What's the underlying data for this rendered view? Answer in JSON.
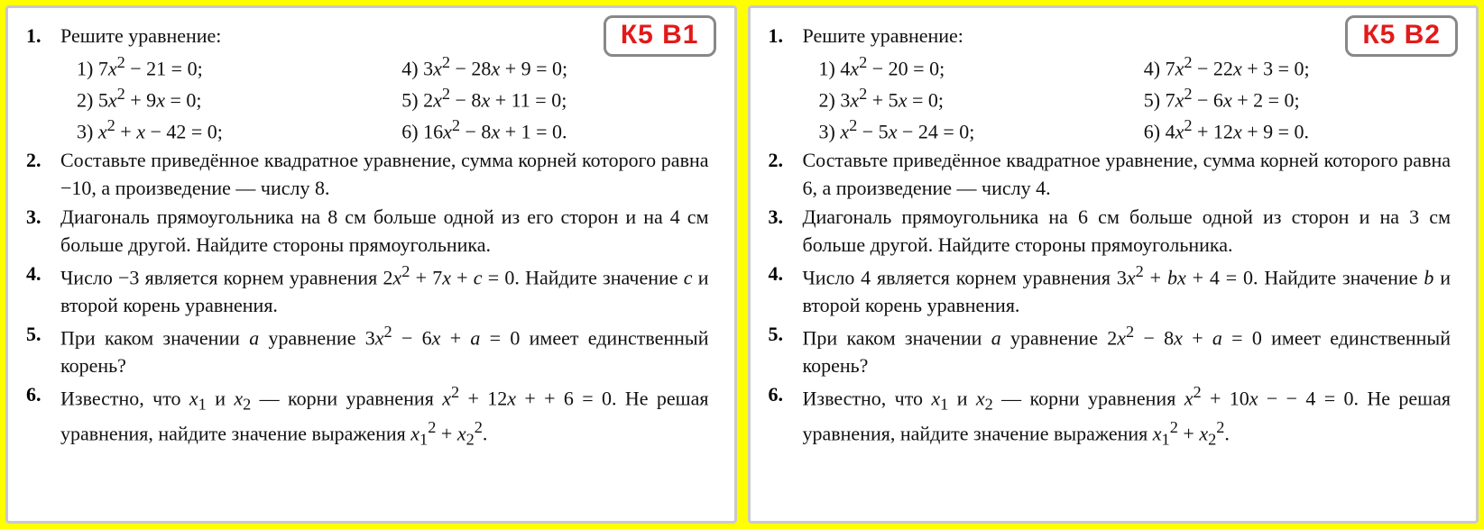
{
  "page_bg": "#ffff00",
  "card_bg": "#ffffff",
  "card_border": "#c9c9c9",
  "badge_text_color": "#e21a1a",
  "badge_border_color": "#888888",
  "variants": [
    {
      "badge": "К5 В1",
      "problems": [
        {
          "num": "1.",
          "intro": "Решите уравнение:",
          "sub": [
            "1) 7<i>x</i><sup>2</sup> − 21 = 0;",
            "4) 3<i>x</i><sup>2</sup> − 28<i>x</i> + 9 = 0;",
            "2) 5<i>x</i><sup>2</sup> + 9<i>x</i> = 0;",
            "5) 2<i>x</i><sup>2</sup> − 8<i>x</i> + 11 = 0;",
            "3) <i>x</i><sup>2</sup> + <i>x</i> − 42 = 0;",
            "6) 16<i>x</i><sup>2</sup> − 8<i>x</i> + 1 = 0."
          ]
        },
        {
          "num": "2.",
          "text": "Составьте приведённое квадратное уравнение, сумма корней которого равна −10, а произведение — числу 8."
        },
        {
          "num": "3.",
          "text": "Диагональ прямоугольника на 8 см больше одной из его сторон и на 4 см больше другой. Найдите стороны прямоугольника."
        },
        {
          "num": "4.",
          "text": "Число −3 является корнем уравнения 2<i>x</i><sup>2</sup> + 7<i>x</i> + <i>c</i> = 0. Найдите значение <i>c</i> и второй корень уравнения."
        },
        {
          "num": "5.",
          "text": "При каком значении <i>a</i> уравнение 3<i>x</i><sup>2</sup> − 6<i>x</i> + <i>a</i> = 0 имеет единственный корень?"
        },
        {
          "num": "6.",
          "text": "Известно, что <i>x</i><sub>1</sub> и <i>x</i><sub>2</sub> — корни уравнения <i>x</i><sup>2</sup> + 12<i>x</i> + + 6 = 0. Не решая уравнения, найдите значение выражения <i>x</i><sub>1</sub><sup>2</sup> + <i>x</i><sub>2</sub><sup>2</sup>."
        }
      ]
    },
    {
      "badge": "К5 В2",
      "problems": [
        {
          "num": "1.",
          "intro": "Решите уравнение:",
          "sub": [
            "1) 4<i>x</i><sup>2</sup> − 20 = 0;",
            "4) 7<i>x</i><sup>2</sup> − 22<i>x</i> + 3 = 0;",
            "2) 3<i>x</i><sup>2</sup> + 5<i>x</i> = 0;",
            "5) 7<i>x</i><sup>2</sup> − 6<i>x</i> + 2 = 0;",
            "3) <i>x</i><sup>2</sup> − 5<i>x</i> − 24 = 0;",
            "6) 4<i>x</i><sup>2</sup> + 12<i>x</i> + 9 = 0."
          ]
        },
        {
          "num": "2.",
          "text": "Составьте приведённое квадратное уравнение, сумма корней которого равна 6, а произведение — числу 4."
        },
        {
          "num": "3.",
          "text": "Диагональ прямоугольника на 6 см больше одной из сторон и на 3 см больше другой. Найдите стороны прямоугольника."
        },
        {
          "num": "4.",
          "text": "Число 4 является корнем уравнения 3<i>x</i><sup>2</sup> + <i>bx</i> + 4 = 0. Найдите значение <i>b</i> и второй корень уравнения."
        },
        {
          "num": "5.",
          "text": "При каком значении <i>a</i> уравнение 2<i>x</i><sup>2</sup> − 8<i>x</i> + <i>a</i> = 0 имеет единственный корень?"
        },
        {
          "num": "6.",
          "text": "Известно, что <i>x</i><sub>1</sub> и <i>x</i><sub>2</sub> — корни уравнения <i>x</i><sup>2</sup> + 10<i>x</i> − − 4 = 0. Не решая уравнения, найдите значение выражения <i>x</i><sub>1</sub><sup>2</sup> + <i>x</i><sub>2</sub><sup>2</sup>."
        }
      ]
    }
  ]
}
